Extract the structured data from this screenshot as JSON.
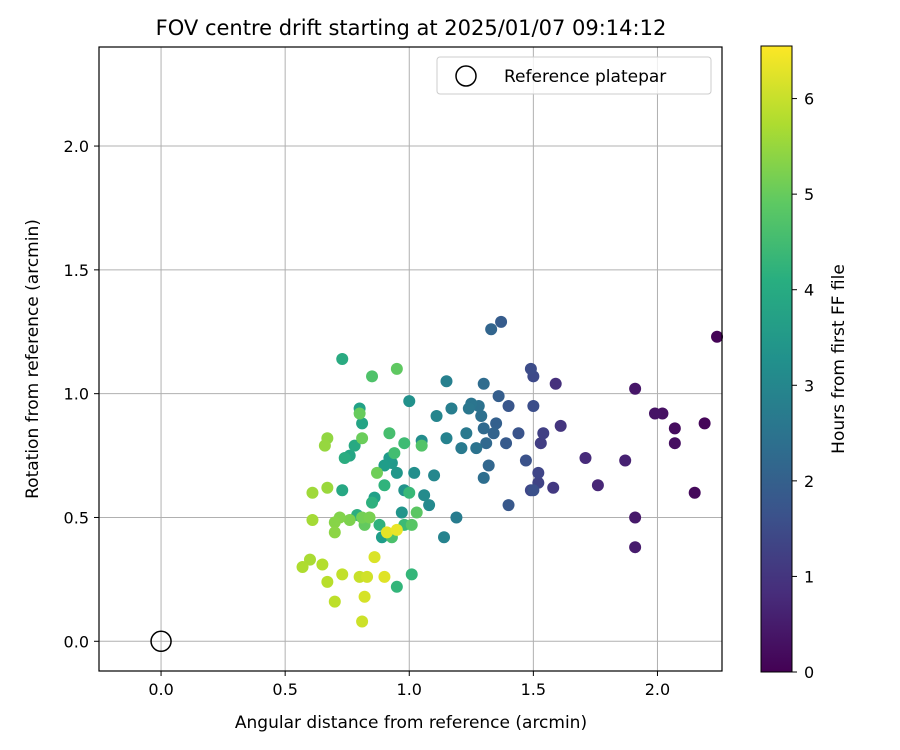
{
  "chart_data": {
    "type": "scatter",
    "title": "FOV centre drift starting at 2025/01/07 09:14:12",
    "xlabel": "Angular distance from reference (arcmin)",
    "ylabel": "Rotation from reference (arcmin)",
    "xlim": [
      -0.25,
      2.26
    ],
    "ylim": [
      -0.12,
      2.4
    ],
    "xticks": [
      0.0,
      0.5,
      1.0,
      1.5,
      2.0
    ],
    "xtick_labels": [
      "0.0",
      "0.5",
      "1.0",
      "1.5",
      "2.0"
    ],
    "yticks": [
      0.0,
      0.5,
      1.0,
      1.5,
      2.0
    ],
    "ytick_labels": [
      "0.0",
      "0.5",
      "1.0",
      "1.5",
      "2.0"
    ],
    "grid": true,
    "legend": {
      "position": "top-right",
      "entries": [
        "Reference platepar"
      ]
    },
    "reference_point": {
      "x": 0.0,
      "y": 0.0
    },
    "colorbar": {
      "label": "Hours from first FF file",
      "range": [
        0,
        6.55
      ],
      "ticks": [
        0,
        1,
        2,
        3,
        4,
        5,
        6
      ],
      "tick_labels": [
        "0",
        "1",
        "2",
        "3",
        "4",
        "5",
        "6"
      ],
      "colormap": "viridis"
    },
    "points": [
      [
        2.24,
        1.23,
        0.05
      ],
      [
        2.19,
        0.88,
        0.1
      ],
      [
        2.15,
        0.6,
        0.15
      ],
      [
        2.07,
        0.86,
        0.2
      ],
      [
        2.07,
        0.8,
        0.25
      ],
      [
        2.02,
        0.92,
        0.3
      ],
      [
        1.99,
        0.92,
        0.35
      ],
      [
        1.91,
        1.02,
        0.4
      ],
      [
        1.91,
        0.5,
        0.45
      ],
      [
        1.91,
        0.38,
        0.5
      ],
      [
        1.87,
        0.73,
        0.6
      ],
      [
        1.76,
        0.63,
        0.7
      ],
      [
        1.71,
        0.74,
        0.8
      ],
      [
        1.59,
        1.04,
        0.9
      ],
      [
        1.61,
        0.87,
        1.0
      ],
      [
        1.58,
        0.62,
        1.1
      ],
      [
        1.53,
        0.8,
        1.2
      ],
      [
        1.54,
        0.84,
        1.25
      ],
      [
        1.52,
        0.64,
        1.3
      ],
      [
        1.52,
        0.68,
        1.35
      ],
      [
        1.49,
        0.61,
        1.4
      ],
      [
        1.5,
        1.07,
        1.45
      ],
      [
        1.49,
        1.1,
        1.5
      ],
      [
        1.5,
        0.95,
        1.55
      ],
      [
        1.5,
        0.61,
        1.6
      ],
      [
        1.47,
        0.73,
        1.65
      ],
      [
        1.44,
        0.84,
        1.7
      ],
      [
        1.4,
        0.95,
        1.75
      ],
      [
        1.4,
        0.55,
        1.8
      ],
      [
        1.39,
        0.8,
        1.85
      ],
      [
        1.37,
        1.29,
        1.9
      ],
      [
        1.36,
        0.99,
        1.95
      ],
      [
        1.35,
        0.88,
        2.0
      ],
      [
        1.34,
        0.84,
        2.05
      ],
      [
        1.33,
        1.26,
        2.1
      ],
      [
        1.32,
        0.71,
        2.15
      ],
      [
        1.31,
        0.8,
        2.2
      ],
      [
        1.3,
        0.86,
        2.25
      ],
      [
        1.3,
        1.04,
        2.3
      ],
      [
        1.3,
        0.66,
        2.35
      ],
      [
        1.29,
        0.91,
        2.4
      ],
      [
        1.28,
        0.95,
        2.45
      ],
      [
        1.27,
        0.78,
        2.5
      ],
      [
        1.25,
        0.96,
        2.55
      ],
      [
        1.24,
        0.94,
        2.6
      ],
      [
        1.23,
        0.84,
        2.65
      ],
      [
        1.21,
        0.78,
        2.7
      ],
      [
        1.19,
        0.5,
        2.75
      ],
      [
        1.17,
        0.94,
        2.8
      ],
      [
        1.15,
        1.05,
        2.85
      ],
      [
        1.15,
        0.82,
        2.9
      ],
      [
        1.14,
        0.42,
        2.95
      ],
      [
        1.11,
        0.91,
        3.0
      ],
      [
        1.1,
        0.67,
        3.05
      ],
      [
        1.08,
        0.55,
        3.1
      ],
      [
        1.06,
        0.59,
        3.15
      ],
      [
        1.05,
        0.81,
        3.2
      ],
      [
        1.02,
        0.68,
        3.25
      ],
      [
        1.0,
        0.97,
        3.3
      ],
      [
        0.98,
        0.61,
        3.35
      ],
      [
        0.97,
        0.52,
        3.4
      ],
      [
        0.95,
        0.68,
        3.45
      ],
      [
        0.93,
        0.72,
        3.5
      ],
      [
        0.92,
        0.74,
        3.55
      ],
      [
        0.9,
        0.71,
        3.6
      ],
      [
        0.89,
        0.42,
        3.65
      ],
      [
        0.86,
        0.58,
        3.7
      ],
      [
        0.8,
        0.94,
        3.75
      ],
      [
        0.81,
        0.88,
        3.8
      ],
      [
        0.76,
        0.75,
        3.85
      ],
      [
        0.73,
        0.61,
        3.9
      ],
      [
        0.78,
        0.79,
        3.95
      ],
      [
        0.73,
        1.14,
        4.0
      ],
      [
        0.74,
        0.74,
        4.05
      ],
      [
        0.79,
        0.51,
        4.1
      ],
      [
        0.85,
        0.56,
        4.15
      ],
      [
        0.88,
        0.47,
        4.2
      ],
      [
        0.9,
        0.63,
        4.25
      ],
      [
        0.95,
        0.22,
        4.3
      ],
      [
        1.01,
        0.27,
        4.35
      ],
      [
        1.0,
        0.6,
        4.4
      ],
      [
        0.98,
        0.47,
        4.45
      ],
      [
        0.98,
        0.8,
        4.5
      ],
      [
        0.94,
        0.76,
        4.55
      ],
      [
        0.92,
        0.84,
        4.6
      ],
      [
        0.93,
        0.42,
        4.65
      ],
      [
        0.85,
        1.07,
        4.7
      ],
      [
        1.05,
        0.79,
        4.75
      ],
      [
        1.01,
        0.47,
        4.8
      ],
      [
        1.03,
        0.52,
        4.85
      ],
      [
        0.95,
        1.1,
        4.9
      ],
      [
        0.82,
        0.47,
        4.95
      ],
      [
        0.8,
        0.92,
        5.0
      ],
      [
        0.81,
        0.82,
        5.05
      ],
      [
        0.87,
        0.68,
        5.1
      ],
      [
        0.81,
        0.5,
        5.15
      ],
      [
        0.84,
        0.5,
        5.2
      ],
      [
        0.76,
        0.49,
        5.25
      ],
      [
        0.72,
        0.5,
        5.3
      ],
      [
        0.7,
        0.48,
        5.35
      ],
      [
        0.7,
        0.44,
        5.4
      ],
      [
        0.67,
        0.82,
        5.45
      ],
      [
        0.66,
        0.79,
        5.5
      ],
      [
        0.67,
        0.62,
        5.55
      ],
      [
        0.61,
        0.6,
        5.6
      ],
      [
        0.61,
        0.49,
        5.65
      ],
      [
        0.6,
        0.33,
        5.7
      ],
      [
        0.57,
        0.3,
        5.75
      ],
      [
        0.65,
        0.31,
        5.8
      ],
      [
        0.67,
        0.24,
        5.85
      ],
      [
        0.7,
        0.16,
        5.9
      ],
      [
        0.73,
        0.27,
        5.95
      ],
      [
        0.8,
        0.26,
        6.0
      ],
      [
        0.81,
        0.08,
        6.05
      ],
      [
        0.83,
        0.26,
        6.1
      ],
      [
        0.82,
        0.18,
        6.15
      ],
      [
        0.86,
        0.34,
        6.2
      ],
      [
        0.9,
        0.26,
        6.25
      ],
      [
        0.91,
        0.44,
        6.3
      ],
      [
        0.95,
        0.45,
        6.35
      ]
    ]
  }
}
